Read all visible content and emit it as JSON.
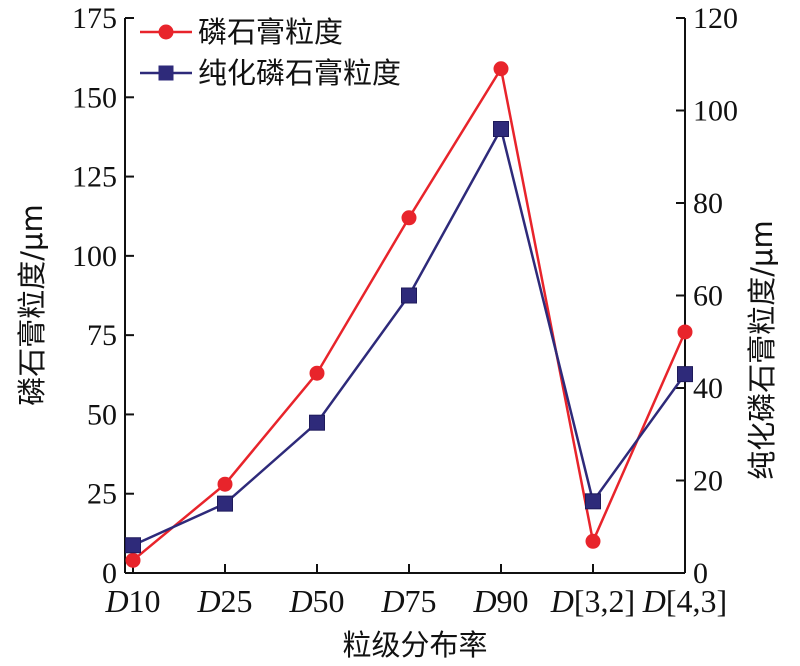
{
  "chart_data": {
    "type": "line",
    "categories": [
      {
        "prefix": "D",
        "suffix": "10"
      },
      {
        "prefix": "D",
        "suffix": "25"
      },
      {
        "prefix": "D",
        "suffix": "50"
      },
      {
        "prefix": "D",
        "suffix": "75"
      },
      {
        "prefix": "D",
        "suffix": "90"
      },
      {
        "prefix": "D",
        "suffix": "[3,2]"
      },
      {
        "prefix": "D",
        "suffix": "[4,3]"
      }
    ],
    "series": [
      {
        "name": "磷石膏粒度",
        "axis": "left",
        "color": "#e8242b",
        "marker": "circle",
        "values": [
          4,
          28,
          63,
          112,
          159,
          10,
          76
        ]
      },
      {
        "name": "纯化磷石膏粒度",
        "axis": "right",
        "color": "#2e2a7a",
        "marker": "square",
        "values": [
          6,
          15,
          32.5,
          60,
          96,
          15.5,
          43
        ]
      }
    ],
    "xlabel": "粒级分布率",
    "ylabel_left": "磷石膏粒度/μm",
    "ylabel_right": "纯化磷石膏粒度/μm",
    "ylim_left": [
      0,
      175
    ],
    "ylim_right": [
      0,
      120
    ],
    "yticks_left": [
      0,
      25,
      50,
      75,
      100,
      125,
      150,
      175
    ],
    "yticks_right": [
      0,
      20,
      40,
      60,
      80,
      100,
      120
    ],
    "legend_position": "top-left",
    "grid": false
  }
}
